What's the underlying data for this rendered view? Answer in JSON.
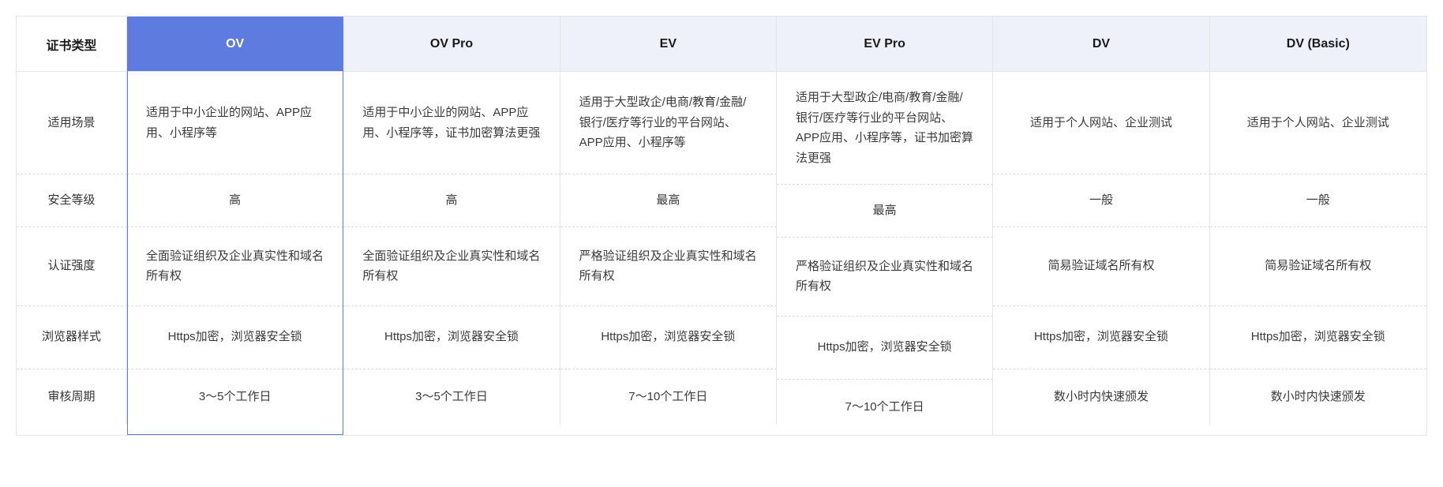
{
  "table": {
    "row_label_header": "证书类型",
    "row_labels": [
      "适用场景",
      "安全等级",
      "认证强度",
      "浏览器样式",
      "审核周期"
    ],
    "columns": [
      {
        "key": "ov",
        "header": "OV",
        "highlighted": true,
        "cells": [
          "适用于中小企业的网站、APP应用、小程序等",
          "高",
          "全面验证组织及企业真实性和域名所有权",
          "Https加密，浏览器安全锁",
          "3～5个工作日"
        ]
      },
      {
        "key": "ov-pro",
        "header": "OV Pro",
        "highlighted": false,
        "cells": [
          "适用于中小企业的网站、APP应用、小程序等，证书加密算法更强",
          "高",
          "全面验证组织及企业真实性和域名所有权",
          "Https加密，浏览器安全锁",
          "3～5个工作日"
        ]
      },
      {
        "key": "ev",
        "header": "EV",
        "highlighted": false,
        "cells": [
          "适用于大型政企/电商/教育/金融/银行/医疗等行业的平台网站、APP应用、小程序等",
          "最高",
          "严格验证组织及企业真实性和域名所有权",
          "Https加密，浏览器安全锁",
          "7～10个工作日"
        ]
      },
      {
        "key": "ev-pro",
        "header": "EV Pro",
        "highlighted": false,
        "cells": [
          "适用于大型政企/电商/教育/金融/银行/医疗等行业的平台网站、APP应用、小程序等，证书加密算法更强",
          "最高",
          "严格验证组织及企业真实性和域名所有权",
          "Https加密，浏览器安全锁",
          "7～10个工作日"
        ]
      },
      {
        "key": "dv",
        "header": "DV",
        "highlighted": false,
        "cells": [
          "适用于个人网站、企业测试",
          "一般",
          "简易验证域名所有权",
          "Https加密，浏览器安全锁",
          "数小时内快速颁发"
        ]
      },
      {
        "key": "dv-basic",
        "header": "DV (Basic)",
        "highlighted": false,
        "cells": [
          "适用于个人网站、企业测试",
          "一般",
          "简易验证域名所有权",
          "Https加密，浏览器安全锁",
          "数小时内快速颁发"
        ]
      }
    ]
  },
  "colors": {
    "highlight_bg": "#5e7ce0",
    "header_bg": "#eef1fa",
    "border": "#e5e5e5",
    "dashed": "#dcdcdc",
    "text": "#3a3a3a"
  }
}
